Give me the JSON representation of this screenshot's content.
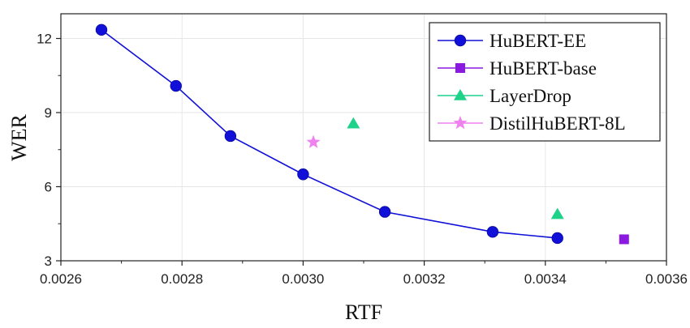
{
  "chart_data": {
    "type": "scatter",
    "xlabel": "RTF",
    "ylabel": "WER",
    "xlim": [
      0.0026,
      0.0036
    ],
    "ylim": [
      3,
      13
    ],
    "xticks": [
      0.0026,
      0.0028,
      0.003,
      0.0032,
      0.0034,
      0.0036
    ],
    "xtick_labels": [
      "0.0026",
      "0.0028",
      "0.0030",
      "0.0032",
      "0.0034",
      "0.0036"
    ],
    "yticks": [
      3,
      6,
      9,
      12
    ],
    "ytick_labels": [
      "3",
      "6",
      "9",
      "12"
    ],
    "grid": true,
    "legend_position": "top-right",
    "series": [
      {
        "name": "HuBERT-EE",
        "marker": "circle",
        "line": true,
        "color": "#1010d8",
        "x": [
          0.002667,
          0.00279,
          0.00288,
          0.003,
          0.003135,
          0.003313,
          0.00342
        ],
        "y": [
          12.35,
          10.08,
          8.05,
          6.5,
          4.98,
          4.17,
          3.92
        ]
      },
      {
        "name": "HuBERT-base",
        "marker": "square",
        "line": false,
        "color": "#8a1ae0",
        "x": [
          0.00353
        ],
        "y": [
          3.87
        ]
      },
      {
        "name": "LayerDrop",
        "marker": "triangle",
        "line": false,
        "color": "#1ed28a",
        "x": [
          0.003083,
          0.00342
        ],
        "y": [
          8.55,
          4.88
        ]
      },
      {
        "name": "DistilHuBERT-8L",
        "marker": "star",
        "line": false,
        "color": "#ee82ee",
        "x": [
          0.003017
        ],
        "y": [
          7.8
        ]
      }
    ]
  }
}
